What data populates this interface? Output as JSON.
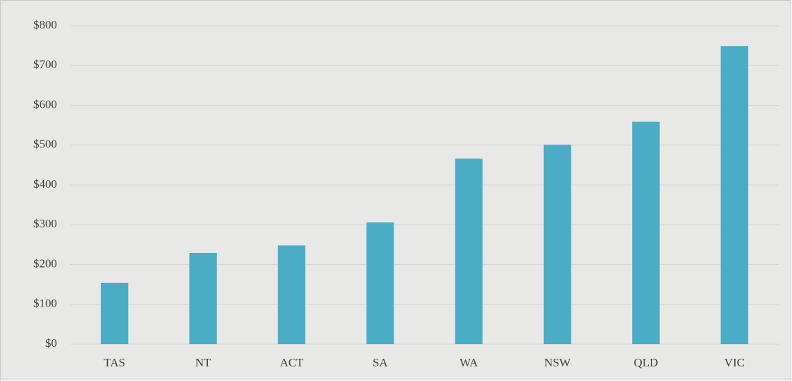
{
  "chart_data": {
    "type": "bar",
    "categories": [
      "TAS",
      "NT",
      "ACT",
      "SA",
      "WA",
      "NSW",
      "QLD",
      "VIC"
    ],
    "values": [
      154,
      229,
      248,
      306,
      466,
      501,
      559,
      749
    ],
    "color": "#4bacc6",
    "ylim": [
      0,
      800
    ],
    "yticks": [
      {
        "value": 0,
        "label": "$0"
      },
      {
        "value": 100,
        "label": "$100"
      },
      {
        "value": 200,
        "label": "$200"
      },
      {
        "value": 300,
        "label": "$300"
      },
      {
        "value": 400,
        "label": "$400"
      },
      {
        "value": 500,
        "label": "$500"
      },
      {
        "value": 600,
        "label": "$600"
      },
      {
        "value": 700,
        "label": "$700"
      },
      {
        "value": 800,
        "label": "$800"
      }
    ],
    "grid": true
  }
}
